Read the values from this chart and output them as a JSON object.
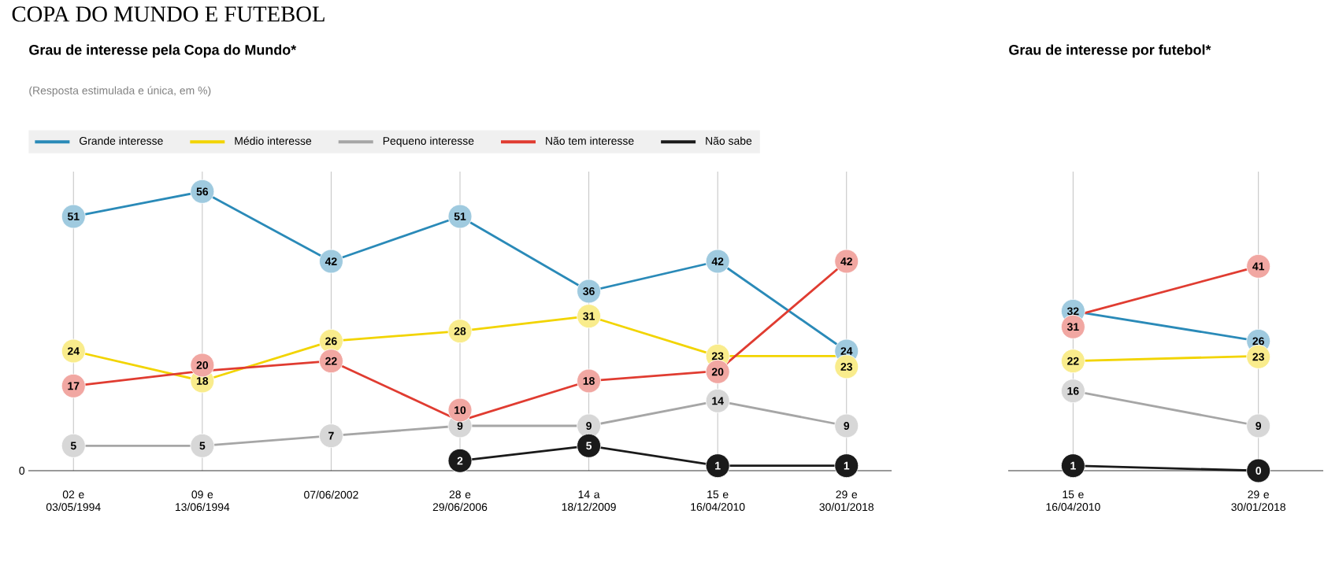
{
  "chart_data": [
    {
      "type": "line",
      "title": "Grau de interesse pela Copa do Mundo*",
      "subtitle": "(Resposta estimulada e única, em %)",
      "annotations": [
        "COPA DO MUNDO E FUTEBOL",
        "0"
      ],
      "categories": [
        "02 e 03/05/1994",
        "09 e 13/06/1994",
        "07/06/2002",
        "28 e 29/06/2006",
        "14 a 18/12/2009",
        "15 e 16/04/2010",
        "29 e 30/01/2018"
      ],
      "series": [
        {
          "name": "Grande interesse",
          "color": "#2a8ab8",
          "values": [
            51,
            56,
            42,
            51,
            36,
            42,
            24
          ]
        },
        {
          "name": "Médio interesse",
          "color": "#f2d400",
          "values": [
            24,
            18,
            26,
            28,
            31,
            23,
            23
          ]
        },
        {
          "name": "Pequeno interesse",
          "color": "#a6a6a6",
          "values": [
            5,
            5,
            7,
            9,
            9,
            14,
            9
          ]
        },
        {
          "name": "Não tem interesse",
          "color": "#e03c31",
          "values": [
            17,
            20,
            22,
            10,
            18,
            20,
            42
          ]
        },
        {
          "name": "Não sabe",
          "color": "#1a1a1a",
          "values": [
            null,
            null,
            null,
            2,
            5,
            1,
            1
          ]
        }
      ],
      "ylim": [
        0,
        60
      ],
      "tick_labels": "x",
      "data_labels": true,
      "grid": "x",
      "legend": "top",
      "marker": "circle"
    },
    {
      "type": "line",
      "title": "Grau de interesse por futebol*",
      "categories": [
        "15 e 16/04/2010",
        "29 e 30/01/2018"
      ],
      "series": [
        {
          "color": "#2a8ab8",
          "values": [
            32,
            26
          ]
        },
        {
          "color": "#f2d400",
          "values": [
            22,
            23
          ]
        },
        {
          "color": "#a6a6a6",
          "values": [
            16,
            9
          ]
        },
        {
          "color": "#e03c31",
          "values": [
            31,
            41
          ]
        },
        {
          "color": "#1a1a1a",
          "values": [
            1,
            0
          ]
        }
      ],
      "ylim": [
        0,
        60
      ],
      "tick_labels": "x",
      "data_labels": true,
      "grid": "x",
      "marker": "circle"
    }
  ]
}
